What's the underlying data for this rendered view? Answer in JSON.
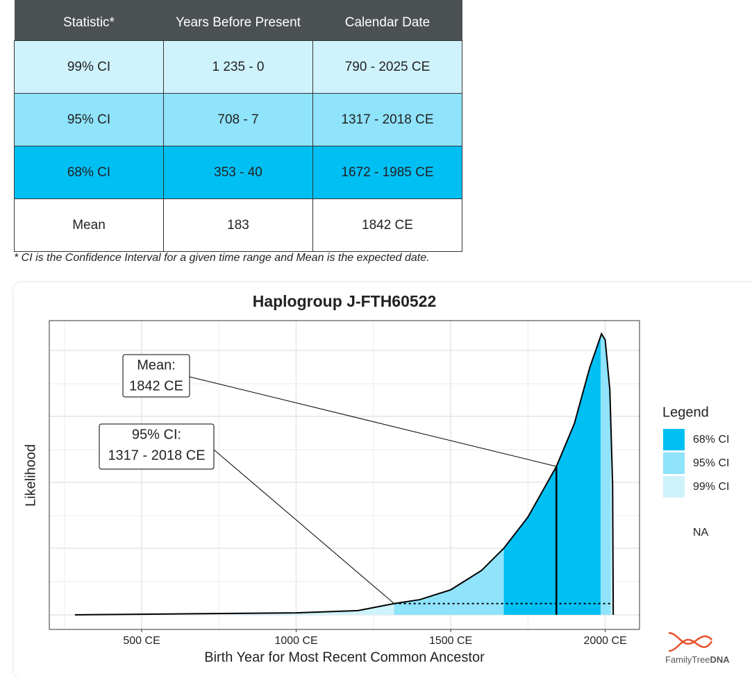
{
  "table": {
    "header": [
      "Statistic*",
      "Years Before Present",
      "Calendar Date"
    ],
    "rows": [
      [
        "99% CI",
        "1 235 - 0",
        "790 - 2025 CE"
      ],
      [
        "95% CI",
        "708 - 7",
        "1317 - 2018 CE"
      ],
      [
        "68% CI",
        "353 - 40",
        "1672 - 1985 CE"
      ],
      [
        "Mean",
        "183",
        "1842 CE"
      ]
    ],
    "row_colors": [
      "#cff3fc",
      "#8fe3fb",
      "#00bff3",
      "#ffffff"
    ],
    "header_color": "#4b5053"
  },
  "footnote": "* CI is the Confidence Interval for a given time range and Mean is the expected date.",
  "chart_data": {
    "type": "area",
    "title": "Haplogroup J-FTH60522",
    "x_label": "Birth Year for Most Recent Common Ancestor",
    "y_label": "Likelihood",
    "x": [
      284,
      500,
      1000,
      1200,
      1317,
      1400,
      1500,
      1600,
      1672,
      1750,
      1842,
      1900,
      1950,
      1988,
      2000,
      2015,
      2024,
      2026
    ],
    "values": [
      0,
      0.002,
      0.007,
      0.015,
      0.04,
      0.054,
      0.089,
      0.158,
      0.237,
      0.348,
      0.528,
      0.68,
      0.88,
      1,
      0.978,
      0.8,
      0.46,
      0
    ],
    "line_color": "#000000",
    "xlim": [
      201,
      2111
    ],
    "ylim": [
      -0.052,
      1.047
    ],
    "xticks": [
      {
        "value": 500,
        "label": "500 CE"
      },
      {
        "value": 1000,
        "label": "1000 CE"
      },
      {
        "value": 1500,
        "label": "1500 CE"
      },
      {
        "value": 2000,
        "label": "2000 CE"
      }
    ],
    "grid": true,
    "bands": [
      {
        "name": "68% CI",
        "color": "#00bff3",
        "range": [
          1672,
          1985
        ]
      },
      {
        "name": "95% CI",
        "color": "#8fe3fb",
        "range": [
          1317,
          2018
        ]
      },
      {
        "name": "99% CI",
        "color": "#cff3fc",
        "range": [
          790,
          2025
        ]
      }
    ],
    "mean": 1842,
    "legend_title": "Legend",
    "legend_na": "NA",
    "legend": "right",
    "annotations": [
      {
        "lines": [
          "Mean:",
          "1842 CE"
        ]
      },
      {
        "lines": [
          "95% CI:",
          "1317 - 2018 CE"
        ]
      }
    ]
  },
  "logo": {
    "name": "FamilyTree",
    "suffix": "DNA"
  }
}
